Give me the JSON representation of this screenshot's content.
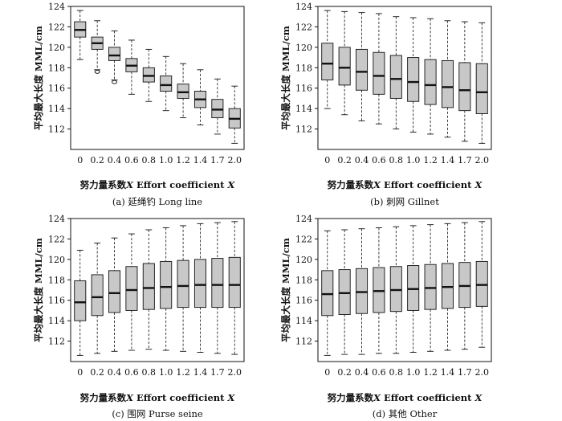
{
  "figure": {
    "xlabel_prefix": "努力量系数",
    "xlabel_var": "X",
    "xlabel_en": " Effort coefficient ",
    "xlabel_var2": "X",
    "ylabel": "平均最大长度 MML/cm"
  },
  "colors": {
    "box_fill": "#c8c8c8",
    "line": "#111111"
  },
  "chart_data": [
    {
      "type": "boxplot",
      "caption": "(a) 延绳钓 Long line",
      "categories": [
        "0",
        "0.2",
        "0.4",
        "0.6",
        "0.8",
        "1.0",
        "1.2",
        "1.4",
        "1.7",
        "2.0"
      ],
      "ylim": [
        110,
        124
      ],
      "yticks": [
        "112",
        "114",
        "116",
        "118",
        "120",
        "122",
        "124"
      ],
      "boxes": [
        {
          "lw": 118.8,
          "q1": 121.0,
          "med": 121.7,
          "q3": 122.5,
          "uw": 123.6,
          "out": []
        },
        {
          "lw": 117.8,
          "q1": 119.8,
          "med": 120.4,
          "q3": 121.0,
          "uw": 122.6,
          "out": [
            117.6
          ]
        },
        {
          "lw": 116.8,
          "q1": 118.7,
          "med": 119.2,
          "q3": 120.0,
          "uw": 121.6,
          "out": [
            116.6
          ]
        },
        {
          "lw": 115.4,
          "q1": 117.6,
          "med": 118.2,
          "q3": 118.9,
          "uw": 120.7,
          "out": []
        },
        {
          "lw": 114.7,
          "q1": 116.6,
          "med": 117.2,
          "q3": 118.0,
          "uw": 119.8,
          "out": []
        },
        {
          "lw": 113.8,
          "q1": 115.7,
          "med": 116.3,
          "q3": 117.2,
          "uw": 119.1,
          "out": []
        },
        {
          "lw": 113.1,
          "q1": 115.0,
          "med": 115.6,
          "q3": 116.4,
          "uw": 118.4,
          "out": []
        },
        {
          "lw": 112.4,
          "q1": 114.1,
          "med": 114.9,
          "q3": 115.7,
          "uw": 117.8,
          "out": []
        },
        {
          "lw": 111.5,
          "q1": 113.1,
          "med": 113.9,
          "q3": 114.9,
          "uw": 116.9,
          "out": []
        },
        {
          "lw": 110.6,
          "q1": 112.1,
          "med": 113.0,
          "q3": 114.0,
          "uw": 116.2,
          "out": []
        }
      ]
    },
    {
      "type": "boxplot",
      "caption": "(b) 刺网 Gillnet",
      "categories": [
        "0",
        "0.2",
        "0.4",
        "0.6",
        "0.8",
        "1.0",
        "1.2",
        "1.4",
        "1.7",
        "2.0"
      ],
      "ylim": [
        110,
        124
      ],
      "yticks": [
        "112",
        "114",
        "116",
        "118",
        "120",
        "122",
        "124"
      ],
      "boxes": [
        {
          "lw": 114.0,
          "q1": 116.8,
          "med": 118.4,
          "q3": 120.4,
          "uw": 123.6,
          "out": []
        },
        {
          "lw": 113.4,
          "q1": 116.3,
          "med": 118.0,
          "q3": 120.0,
          "uw": 123.5,
          "out": []
        },
        {
          "lw": 112.8,
          "q1": 115.8,
          "med": 117.6,
          "q3": 119.8,
          "uw": 123.4,
          "out": []
        },
        {
          "lw": 112.5,
          "q1": 115.4,
          "med": 117.2,
          "q3": 119.5,
          "uw": 123.3,
          "out": []
        },
        {
          "lw": 112.0,
          "q1": 115.0,
          "med": 116.9,
          "q3": 119.2,
          "uw": 123.0,
          "out": []
        },
        {
          "lw": 111.7,
          "q1": 114.7,
          "med": 116.6,
          "q3": 119.0,
          "uw": 122.9,
          "out": []
        },
        {
          "lw": 111.5,
          "q1": 114.4,
          "med": 116.3,
          "q3": 118.8,
          "uw": 122.8,
          "out": []
        },
        {
          "lw": 111.2,
          "q1": 114.1,
          "med": 116.1,
          "q3": 118.7,
          "uw": 122.6,
          "out": []
        },
        {
          "lw": 110.8,
          "q1": 113.8,
          "med": 115.8,
          "q3": 118.5,
          "uw": 122.5,
          "out": []
        },
        {
          "lw": 110.6,
          "q1": 113.5,
          "med": 115.6,
          "q3": 118.4,
          "uw": 122.4,
          "out": []
        }
      ]
    },
    {
      "type": "boxplot",
      "caption": "(c) 围网 Purse seine",
      "categories": [
        "0",
        "0.2",
        "0.4",
        "0.6",
        "0.8",
        "1.0",
        "1.2",
        "1.4",
        "1.7",
        "2.0"
      ],
      "ylim": [
        110,
        124
      ],
      "yticks": [
        "112",
        "114",
        "116",
        "118",
        "120",
        "122",
        "124"
      ],
      "boxes": [
        {
          "lw": 110.6,
          "q1": 114.0,
          "med": 115.8,
          "q3": 117.9,
          "uw": 120.9,
          "out": []
        },
        {
          "lw": 110.8,
          "q1": 114.5,
          "med": 116.3,
          "q3": 118.5,
          "uw": 121.6,
          "out": []
        },
        {
          "lw": 111.0,
          "q1": 114.8,
          "med": 116.7,
          "q3": 118.9,
          "uw": 122.1,
          "out": []
        },
        {
          "lw": 111.1,
          "q1": 115.0,
          "med": 117.0,
          "q3": 119.3,
          "uw": 122.5,
          "out": []
        },
        {
          "lw": 111.2,
          "q1": 115.1,
          "med": 117.2,
          "q3": 119.6,
          "uw": 122.9,
          "out": []
        },
        {
          "lw": 111.1,
          "q1": 115.2,
          "med": 117.3,
          "q3": 119.8,
          "uw": 123.1,
          "out": []
        },
        {
          "lw": 111.0,
          "q1": 115.3,
          "med": 117.4,
          "q3": 119.9,
          "uw": 123.3,
          "out": []
        },
        {
          "lw": 110.9,
          "q1": 115.3,
          "med": 117.5,
          "q3": 120.0,
          "uw": 123.5,
          "out": []
        },
        {
          "lw": 110.8,
          "q1": 115.3,
          "med": 117.5,
          "q3": 120.1,
          "uw": 123.6,
          "out": []
        },
        {
          "lw": 110.7,
          "q1": 115.3,
          "med": 117.5,
          "q3": 120.2,
          "uw": 123.7,
          "out": []
        }
      ]
    },
    {
      "type": "boxplot",
      "caption": "(d) 其他 Other",
      "categories": [
        "0",
        "0.2",
        "0.4",
        "0.6",
        "0.8",
        "1.0",
        "1.2",
        "1.4",
        "1.7",
        "2.0"
      ],
      "ylim": [
        110,
        124
      ],
      "yticks": [
        "112",
        "114",
        "116",
        "118",
        "120",
        "122",
        "124"
      ],
      "boxes": [
        {
          "lw": 110.6,
          "q1": 114.5,
          "med": 116.6,
          "q3": 118.9,
          "uw": 122.8,
          "out": []
        },
        {
          "lw": 110.7,
          "q1": 114.6,
          "med": 116.7,
          "q3": 119.0,
          "uw": 122.9,
          "out": []
        },
        {
          "lw": 110.7,
          "q1": 114.7,
          "med": 116.8,
          "q3": 119.1,
          "uw": 123.0,
          "out": []
        },
        {
          "lw": 110.8,
          "q1": 114.8,
          "med": 116.9,
          "q3": 119.2,
          "uw": 123.1,
          "out": []
        },
        {
          "lw": 110.8,
          "q1": 114.9,
          "med": 117.0,
          "q3": 119.3,
          "uw": 123.2,
          "out": []
        },
        {
          "lw": 110.9,
          "q1": 115.0,
          "med": 117.1,
          "q3": 119.4,
          "uw": 123.3,
          "out": []
        },
        {
          "lw": 111.0,
          "q1": 115.1,
          "med": 117.2,
          "q3": 119.5,
          "uw": 123.4,
          "out": []
        },
        {
          "lw": 111.1,
          "q1": 115.2,
          "med": 117.3,
          "q3": 119.6,
          "uw": 123.5,
          "out": []
        },
        {
          "lw": 111.2,
          "q1": 115.3,
          "med": 117.4,
          "q3": 119.7,
          "uw": 123.6,
          "out": []
        },
        {
          "lw": 111.4,
          "q1": 115.4,
          "med": 117.5,
          "q3": 119.8,
          "uw": 123.7,
          "out": []
        }
      ]
    }
  ]
}
